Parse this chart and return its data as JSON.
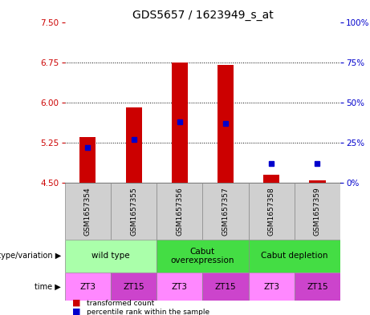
{
  "title": "GDS5657 / 1623949_s_at",
  "samples": [
    "GSM1657354",
    "GSM1657355",
    "GSM1657356",
    "GSM1657357",
    "GSM1657358",
    "GSM1657359"
  ],
  "bar_values": [
    5.35,
    5.9,
    6.75,
    6.7,
    4.65,
    4.55
  ],
  "percentile_values": [
    22,
    27,
    38,
    37,
    12,
    12
  ],
  "bar_bottom": 4.5,
  "ylim_left": [
    4.5,
    7.5
  ],
  "ylim_right": [
    0,
    100
  ],
  "yticks_left": [
    4.5,
    5.25,
    6.0,
    6.75,
    7.5
  ],
  "yticks_right": [
    0,
    25,
    50,
    75,
    100
  ],
  "bar_color": "#cc0000",
  "marker_color": "#0000cc",
  "grid_color": "#000000",
  "genotype_labels": [
    {
      "text": "wild type",
      "span": [
        0,
        2
      ],
      "color": "#aaffaa"
    },
    {
      "text": "Cabut\noverexpression",
      "span": [
        2,
        4
      ],
      "color": "#44dd44"
    },
    {
      "text": "Cabut depletion",
      "span": [
        4,
        6
      ],
      "color": "#44dd44"
    }
  ],
  "time_labels": [
    "ZT3",
    "ZT15",
    "ZT3",
    "ZT15",
    "ZT3",
    "ZT15"
  ],
  "time_colors_alt": [
    "#ff88ff",
    "#cc44cc"
  ],
  "left_axis_color": "#cc0000",
  "right_axis_color": "#0000cc",
  "title_fontsize": 10,
  "tick_fontsize": 7.5,
  "sample_fontsize": 6.5,
  "table_fontsize": 7.5,
  "sample_bg": "#d0d0d0",
  "legend_red_color": "#cc0000",
  "legend_blue_color": "#0000cc"
}
